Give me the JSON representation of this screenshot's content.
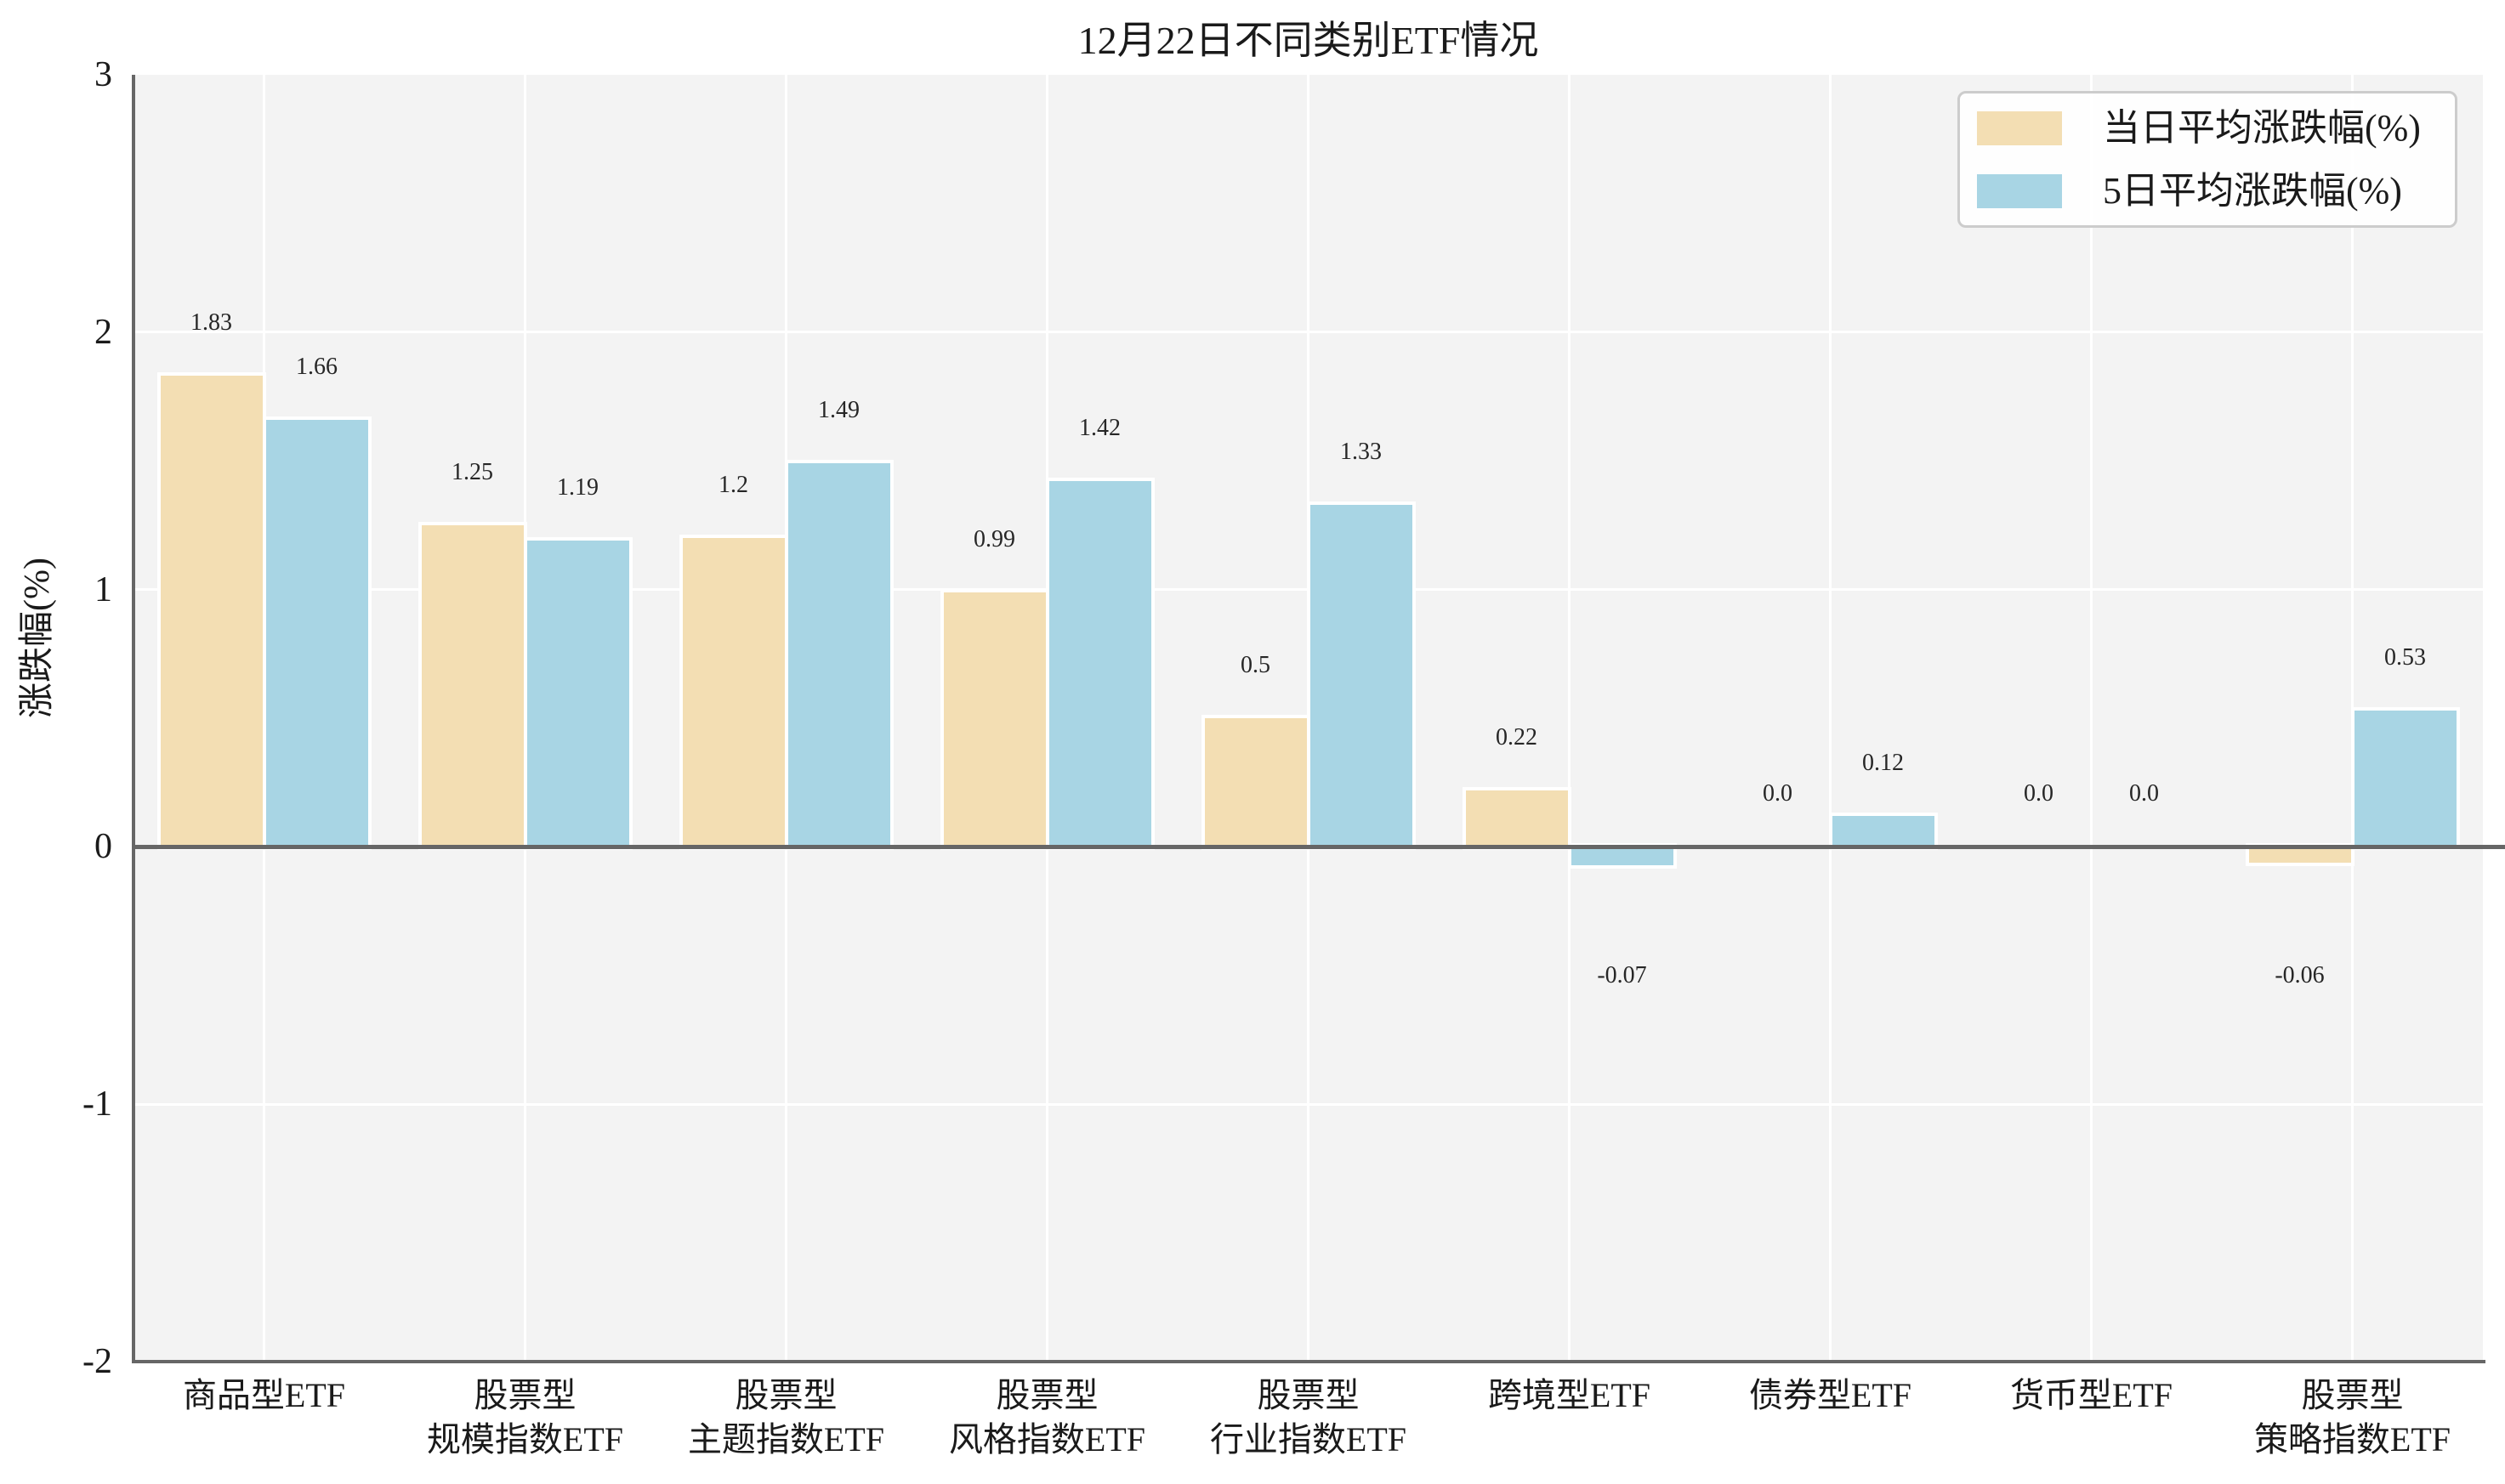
{
  "chart_data": {
    "type": "bar",
    "title": "12月22日不同类别ETF情况",
    "ylabel": "涨跌幅(%)",
    "ylim": [
      -2,
      3
    ],
    "yticks": [
      "3",
      "2",
      "1",
      "0",
      "-1",
      "-2"
    ],
    "ytick_values": [
      3,
      2,
      1,
      0,
      -1,
      -2
    ],
    "grid": "on",
    "legend_position": "upper right",
    "categories": [
      [
        "商品型ETF"
      ],
      [
        "股票型",
        "规模指数ETF"
      ],
      [
        "股票型",
        "主题指数ETF"
      ],
      [
        "股票型",
        "风格指数ETF"
      ],
      [
        "股票型",
        "行业指数ETF"
      ],
      [
        "跨境型ETF"
      ],
      [
        "债券型ETF"
      ],
      [
        "货币型ETF"
      ],
      [
        "股票型",
        "策略指数ETF"
      ]
    ],
    "series": [
      {
        "name": "当日平均涨跌幅(%)",
        "color": "#F3DEB3",
        "values": [
          1.83,
          1.25,
          1.2,
          0.99,
          0.5,
          0.22,
          0.0,
          0.0,
          -0.06
        ],
        "labels": [
          "1.83",
          "1.25",
          "1.2",
          "0.99",
          "0.5",
          "0.22",
          "0.0",
          "0.0",
          "-0.06"
        ]
      },
      {
        "name": "5日平均涨跌幅(%)",
        "color": "#A8D5E4",
        "values": [
          1.66,
          1.19,
          1.49,
          1.42,
          1.33,
          -0.07,
          0.12,
          0.0,
          0.53
        ],
        "labels": [
          "1.66",
          "1.19",
          "1.49",
          "1.42",
          "1.33",
          "-0.07",
          "0.12",
          "0.0",
          "0.53"
        ]
      }
    ],
    "colors": {
      "plot_background": "#f3f3f3",
      "grid": "#ffffff",
      "spine": "#666666",
      "text": "#1a1a1a"
    }
  }
}
